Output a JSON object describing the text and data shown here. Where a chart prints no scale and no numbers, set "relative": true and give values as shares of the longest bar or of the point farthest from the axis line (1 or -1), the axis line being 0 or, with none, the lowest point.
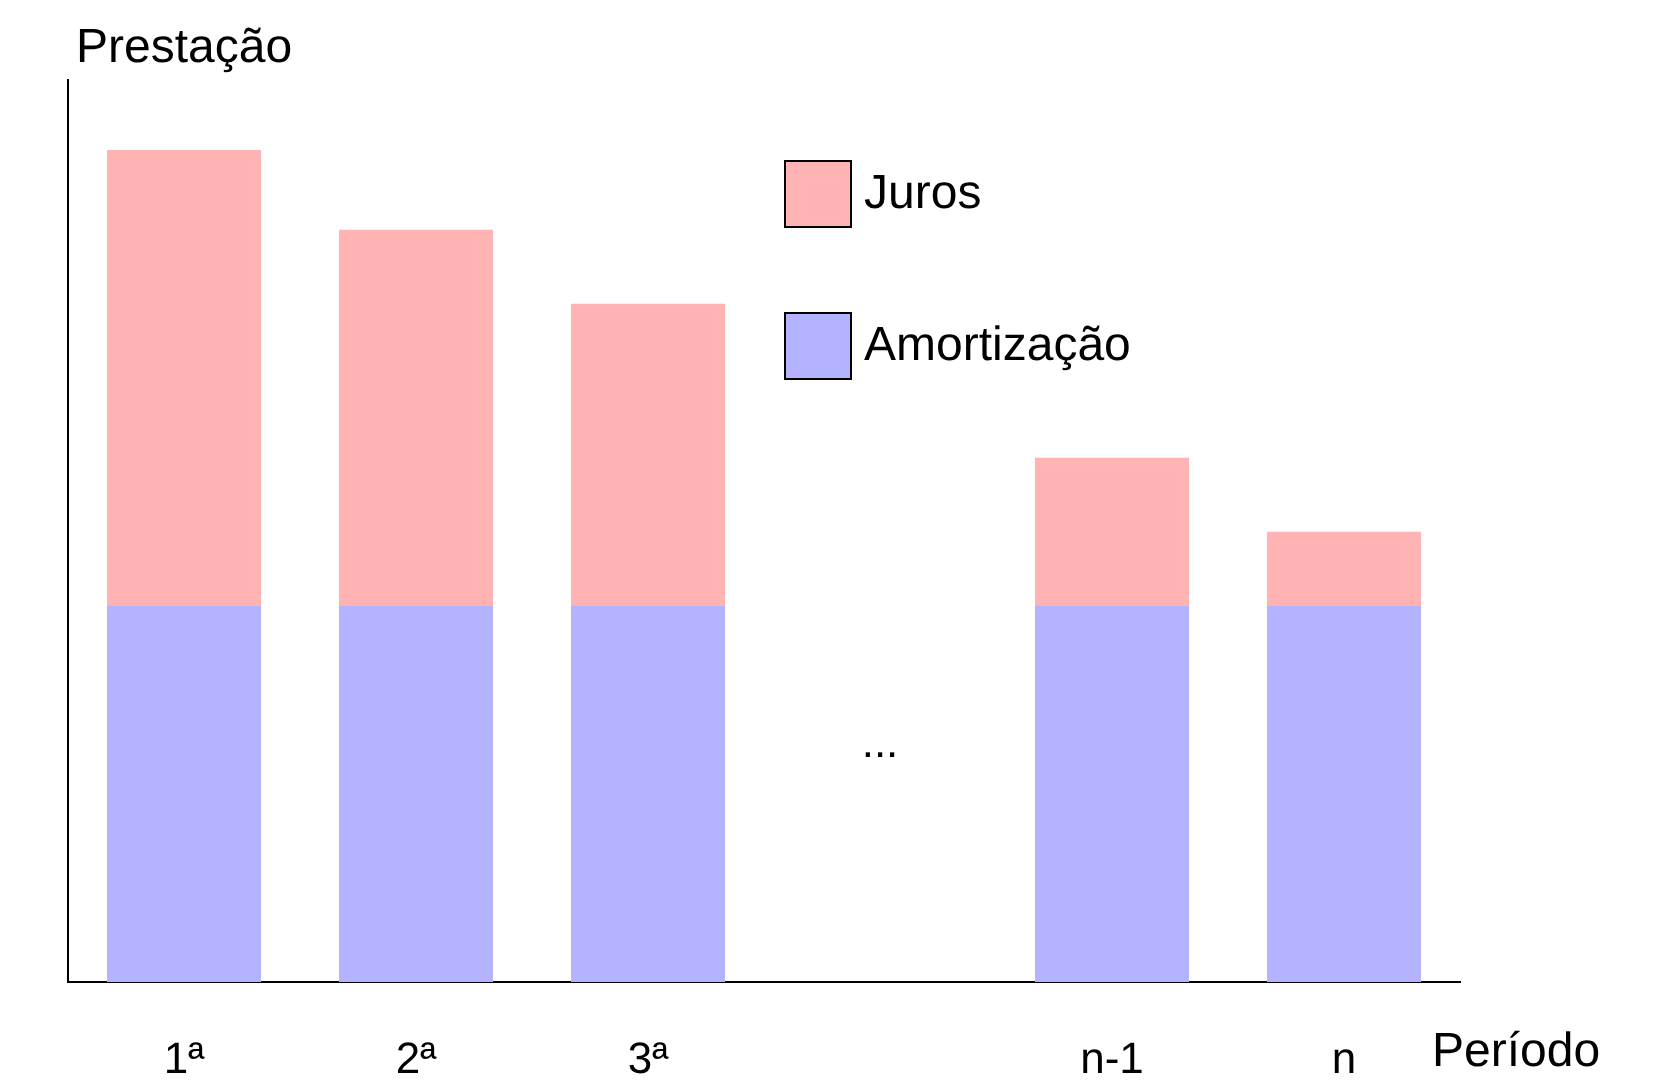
{
  "chart_data": {
    "type": "bar",
    "stacked": true,
    "relative": true,
    "xlabel": "Período",
    "ylabel": "Prestação",
    "categories": [
      "1ª",
      "2ª",
      "3ª",
      null,
      "n-1",
      "n"
    ],
    "series": [
      {
        "name": "Amortização",
        "color": "#b3b3ff",
        "values": [
          0.452,
          0.452,
          0.452,
          null,
          0.452,
          0.452
        ]
      },
      {
        "name": "Juros",
        "color": "#ffb3b3",
        "values": [
          0.548,
          0.452,
          0.363,
          null,
          0.178,
          0.089
        ]
      }
    ],
    "annotations": [
      "..."
    ],
    "legend": "top right",
    "grid": false
  }
}
